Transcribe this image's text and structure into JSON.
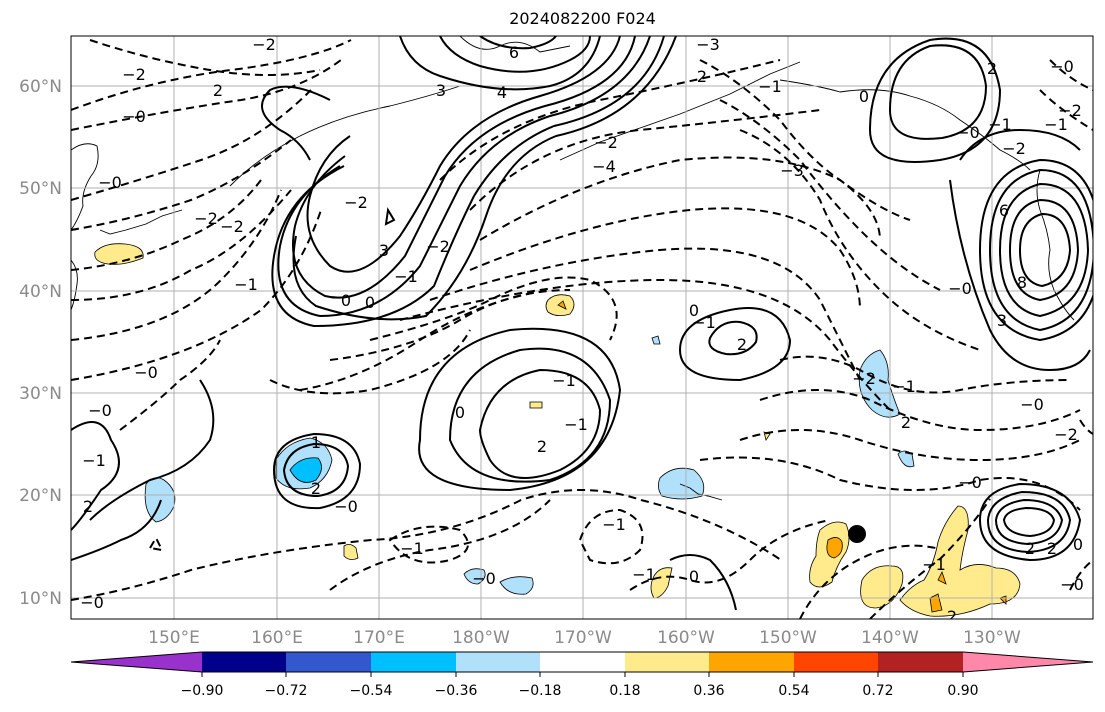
{
  "title": "2024082200 F024",
  "lon_labels": [
    "150°E",
    "160°E",
    "170°E",
    "180°W",
    "170°W",
    "160°W",
    "150°W",
    "140°W",
    "130°W"
  ],
  "lat_labels": [
    "60°N",
    "50°N",
    "40°N",
    "30°N",
    "20°N",
    "10°N"
  ],
  "colorbar": {
    "colors": [
      "#9932cc",
      "#00008b",
      "#3357cd",
      "#00bfff",
      "#b0e0fa",
      "#ffffff",
      "#ffeb8c",
      "#ffa500",
      "#ff4500",
      "#b22222",
      "#ff88aa"
    ],
    "ticks": [
      "−0.90",
      "−0.72",
      "−0.54",
      "−0.36",
      "−0.18",
      "0.18",
      "0.36",
      "0.54",
      "0.72",
      "0.90"
    ]
  },
  "contour_labels": [
    "6",
    "4",
    "3",
    "−3",
    "2",
    "−2",
    "2",
    "−0",
    "−0",
    "−2",
    "−2",
    "−2",
    "−2",
    "−4",
    "−3",
    "−2",
    "3",
    "−2",
    "−1",
    "0",
    "0",
    "−1",
    "2",
    "0",
    "−1",
    "−0",
    "−1",
    "0",
    "−1",
    "2",
    "−0",
    "1",
    "2",
    "−1",
    "−0",
    "−0",
    "−1",
    "2",
    "−0",
    "−1",
    "−2",
    "−1",
    "−0",
    "−0",
    "2",
    "2",
    "6",
    "8",
    "3",
    "−2",
    "2",
    "0",
    "−1",
    "−1",
    "2",
    "0",
    "−0",
    "−1",
    "−1",
    "−0",
    "−0",
    "−2",
    "2",
    "−0",
    "0",
    "−2",
    "−1"
  ],
  "marker": {
    "name": "typhoon-center",
    "color": "#000000"
  }
}
